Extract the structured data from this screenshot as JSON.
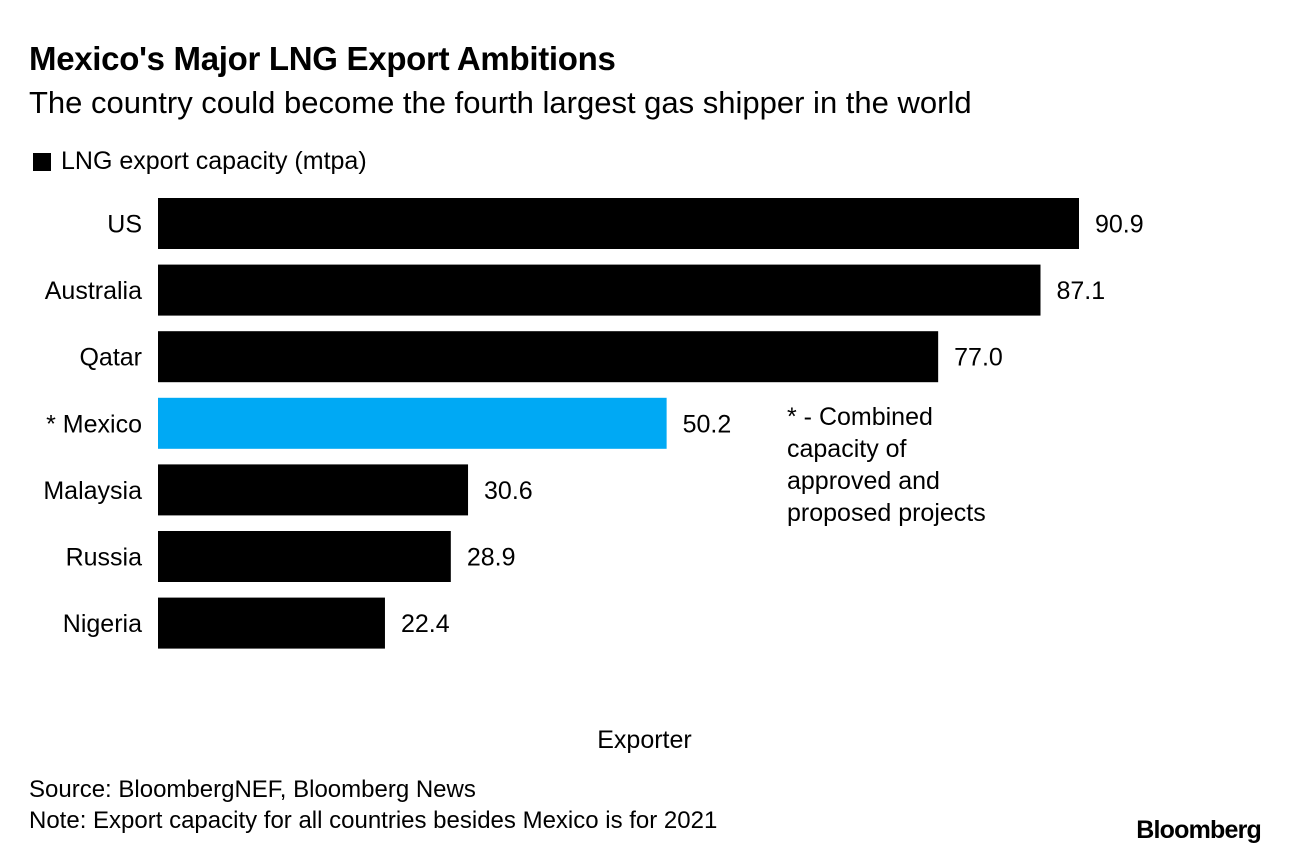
{
  "header": {
    "title": "Mexico's Major LNG Export Ambitions",
    "subtitle": "The country could become the fourth largest gas shipper in the world"
  },
  "legend": {
    "label": "LNG export capacity (mtpa)",
    "color": "#000000"
  },
  "annotation": "* - Combined capacity of approved and proposed projects",
  "footer": {
    "source": "Source: BloombergNEF, Bloomberg News",
    "note": "Note: Export capacity for all countries besides Mexico is for 2021",
    "brand": "Bloomberg"
  },
  "chart_data": {
    "type": "bar",
    "orientation": "horizontal",
    "categories": [
      "US",
      "Australia",
      "Qatar",
      "* Mexico",
      "Malaysia",
      "Russia",
      "Nigeria"
    ],
    "series": [
      {
        "name": "LNG export capacity (mtpa)",
        "values": [
          90.9,
          87.1,
          77.0,
          50.2,
          30.6,
          28.9,
          22.4
        ],
        "labels": [
          "90.9",
          "87.1",
          "77.0",
          "50.2",
          "30.6",
          "28.9",
          "22.4"
        ]
      }
    ],
    "colors": {
      "default": "#000000",
      "highlight": "#00a9f4"
    },
    "highlight_category": "* Mexico",
    "xlabel": "Exporter",
    "ylabel": "",
    "xlim": [
      0,
      90.9
    ],
    "grid": false,
    "legend_position": "top-left"
  }
}
